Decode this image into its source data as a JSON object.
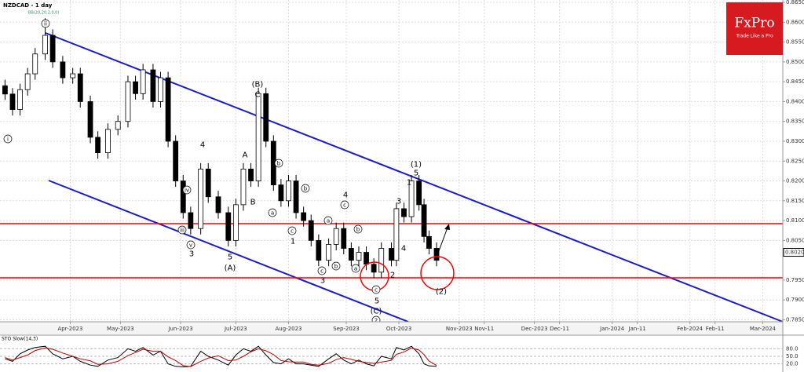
{
  "logo": {
    "name": "FxPro",
    "tagline": "Trade Like a Pro"
  },
  "chart_data": [
    {
      "type": "candlestick",
      "title": "NZDCAD - 1 day",
      "subtitle": "BB(20,20,2,0,0)",
      "x": [
        2,
        5,
        8,
        11,
        14,
        18,
        21,
        25,
        29,
        32,
        36,
        39,
        43,
        47,
        51,
        54,
        57,
        61,
        64,
        67,
        70,
        73,
        76,
        80,
        83,
        87,
        91,
        94,
        97,
        100,
        103,
        106,
        109,
        112,
        115,
        118,
        121,
        124,
        127,
        131,
        134,
        137,
        140,
        143,
        146,
        149,
        152,
        156,
        158,
        161,
        164,
        167,
        169,
        171,
        174
      ],
      "open": [
        0.844,
        0.8419,
        0.838,
        0.843,
        0.847,
        0.852,
        0.8567,
        0.85,
        0.846,
        0.847,
        0.84,
        0.831,
        0.8271,
        0.833,
        0.835,
        0.845,
        0.842,
        0.848,
        0.84,
        0.846,
        0.83,
        0.82,
        0.812,
        0.808,
        0.823,
        0.816,
        0.812,
        0.805,
        0.814,
        0.823,
        0.82,
        0.842,
        0.83,
        0.819,
        0.815,
        0.82,
        0.812,
        0.81,
        0.805,
        0.8,
        0.804,
        0.808,
        0.803,
        0.8,
        0.802,
        0.799,
        0.797,
        0.803,
        0.8,
        0.813,
        0.811,
        0.82,
        0.814,
        0.806,
        0.803
      ],
      "high": [
        0.8455,
        0.8434,
        0.8445,
        0.8485,
        0.8535,
        0.861,
        0.8582,
        0.8515,
        0.8485,
        0.8485,
        0.8415,
        0.8325,
        0.8345,
        0.8365,
        0.8465,
        0.8465,
        0.8495,
        0.8495,
        0.8475,
        0.8475,
        0.8315,
        0.8215,
        0.8135,
        0.8245,
        0.8245,
        0.8175,
        0.8135,
        0.8155,
        0.8245,
        0.8245,
        0.8435,
        0.8435,
        0.8315,
        0.8205,
        0.8215,
        0.8215,
        0.8135,
        0.8115,
        0.8065,
        0.8055,
        0.8095,
        0.8095,
        0.8045,
        0.8035,
        0.8035,
        0.8005,
        0.8045,
        0.8045,
        0.8145,
        0.8145,
        0.8215,
        0.8215,
        0.8155,
        0.8075,
        0.8045
      ],
      "low": [
        0.8404,
        0.8365,
        0.8365,
        0.8415,
        0.8455,
        0.8505,
        0.8485,
        0.8445,
        0.8445,
        0.8385,
        0.8295,
        0.8256,
        0.8256,
        0.8315,
        0.8335,
        0.8405,
        0.8405,
        0.8385,
        0.8385,
        0.8285,
        0.8185,
        0.8105,
        0.8065,
        0.8065,
        0.8145,
        0.8105,
        0.8035,
        0.8035,
        0.8125,
        0.8185,
        0.8185,
        0.8285,
        0.8175,
        0.8135,
        0.8135,
        0.8105,
        0.8085,
        0.8035,
        0.7985,
        0.7985,
        0.8025,
        0.8015,
        0.7985,
        0.7985,
        0.7975,
        0.7955,
        0.7955,
        0.7985,
        0.7985,
        0.8095,
        0.8095,
        0.8125,
        0.8045,
        0.8015,
        0.7985
      ],
      "close": [
        0.8419,
        0.838,
        0.843,
        0.847,
        0.852,
        0.8567,
        0.85,
        0.846,
        0.847,
        0.84,
        0.831,
        0.8271,
        0.833,
        0.835,
        0.845,
        0.842,
        0.848,
        0.84,
        0.846,
        0.83,
        0.82,
        0.812,
        0.808,
        0.823,
        0.816,
        0.812,
        0.805,
        0.814,
        0.823,
        0.82,
        0.842,
        0.83,
        0.819,
        0.815,
        0.82,
        0.812,
        0.81,
        0.805,
        0.8,
        0.804,
        0.808,
        0.803,
        0.8,
        0.802,
        0.799,
        0.797,
        0.803,
        0.8,
        0.813,
        0.811,
        0.82,
        0.814,
        0.806,
        0.803,
        0.8
      ],
      "up_color": "#ffffff",
      "down_color": "#000000",
      "xlim": [
        0,
        312
      ],
      "xticks": [
        {
          "value": 28,
          "label": "Apr-2023"
        },
        {
          "value": 48,
          "label": "May-2023"
        },
        {
          "value": 72,
          "label": "Jun-2023"
        },
        {
          "value": 94,
          "label": "Jul-2023"
        },
        {
          "value": 115,
          "label": "Aug-2023"
        },
        {
          "value": 138,
          "label": "Sep-2023"
        },
        {
          "value": 159,
          "label": "Oct-2023"
        },
        {
          "value": 183,
          "label": "Nov-2023"
        },
        {
          "value": 193,
          "label": "Nov-11"
        },
        {
          "value": 213,
          "label": "Dec-2023"
        },
        {
          "value": 223,
          "label": "Dec-11"
        },
        {
          "value": 244,
          "label": "Jan-2024"
        },
        {
          "value": 254,
          "label": "Jan-11"
        },
        {
          "value": 275,
          "label": "Feb-2024"
        },
        {
          "value": 285,
          "label": "Feb-11"
        },
        {
          "value": 304,
          "label": "Mar-2024"
        }
      ],
      "ylim": [
        0.7845,
        0.8656
      ],
      "yticks": [
        {
          "value": 0.785,
          "label": "0.7850"
        },
        {
          "value": 0.79,
          "label": "0.7900"
        },
        {
          "value": 0.795,
          "label": "0.7950"
        },
        {
          "value": 0.805,
          "label": "0.8050"
        },
        {
          "value": 0.81,
          "label": "0.8100"
        },
        {
          "value": 0.815,
          "label": "0.8150"
        },
        {
          "value": 0.82,
          "label": "0.8200"
        },
        {
          "value": 0.825,
          "label": "0.8250"
        },
        {
          "value": 0.83,
          "label": "0.8300"
        },
        {
          "value": 0.835,
          "label": "0.8350"
        },
        {
          "value": 0.84,
          "label": "0.8400"
        },
        {
          "value": 0.845,
          "label": "0.8450"
        },
        {
          "value": 0.85,
          "label": "0.8500"
        },
        {
          "value": 0.855,
          "label": "0.8550"
        },
        {
          "value": 0.86,
          "label": "0.8600"
        },
        {
          "value": 0.865,
          "label": "0.8650"
        }
      ],
      "last_price": {
        "value": 0.802,
        "label": "0.8020"
      },
      "grid": true,
      "annotations": [
        "i",
        "ii",
        "iii",
        "iv",
        "v",
        "3",
        "4",
        "5",
        "(A)",
        "A",
        "B",
        "(B)",
        "C",
        "a",
        "b",
        "2",
        "b",
        "c",
        "1",
        "c",
        "3",
        "a",
        "b",
        "c",
        "4",
        "a",
        "b",
        "c",
        "5",
        "(C)",
        "2",
        "2",
        "3",
        "4",
        "1",
        "(1)",
        "5",
        "(2)"
      ]
    },
    {
      "type": "line",
      "title": "STO Slow(14,3)",
      "x": [
        2,
        5,
        8,
        11,
        14,
        18,
        21,
        25,
        29,
        32,
        36,
        39,
        43,
        47,
        51,
        54,
        57,
        61,
        64,
        67,
        70,
        73,
        76,
        80,
        83,
        87,
        91,
        94,
        97,
        100,
        103,
        106,
        109,
        112,
        115,
        118,
        121,
        124,
        127,
        131,
        134,
        137,
        140,
        143,
        146,
        149,
        152,
        156,
        158,
        161,
        164,
        167,
        169,
        171,
        174
      ],
      "series": [
        {
          "color": "#000000",
          "values": [
            40,
            30,
            60,
            75,
            85,
            90,
            60,
            40,
            50,
            30,
            15,
            10,
            35,
            45,
            80,
            70,
            85,
            55,
            70,
            20,
            10,
            8,
            10,
            70,
            50,
            35,
            15,
            55,
            80,
            70,
            90,
            55,
            25,
            20,
            40,
            20,
            20,
            15,
            10,
            40,
            60,
            35,
            20,
            35,
            20,
            12,
            50,
            40,
            85,
            75,
            90,
            60,
            20,
            12,
            10
          ]
        },
        {
          "color": "#c00000",
          "values": [
            45,
            35,
            45,
            55,
            73,
            83,
            78,
            63,
            50,
            40,
            32,
            18,
            20,
            30,
            53,
            65,
            78,
            70,
            70,
            48,
            33,
            13,
            9,
            30,
            43,
            52,
            33,
            35,
            50,
            68,
            80,
            72,
            57,
            33,
            28,
            27,
            27,
            18,
            15,
            22,
            37,
            45,
            38,
            30,
            25,
            22,
            27,
            34,
            58,
            67,
            83,
            75,
            57,
            31,
            14
          ]
        }
      ],
      "xlim": [
        0,
        312
      ],
      "ylim": [
        0,
        100
      ],
      "yticks": [
        {
          "value": 20,
          "label": "20.0"
        },
        {
          "value": 50,
          "label": "50.0"
        },
        {
          "value": 80,
          "label": "80.0"
        }
      ]
    }
  ]
}
